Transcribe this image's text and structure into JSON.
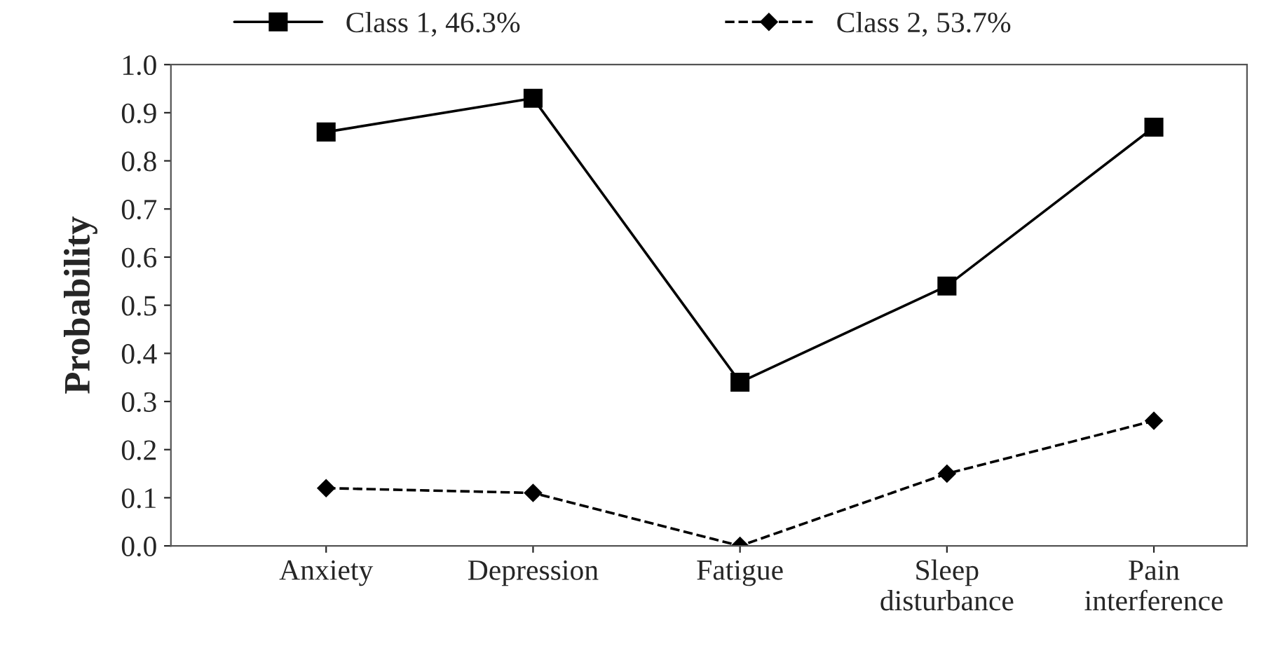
{
  "chart_data": {
    "type": "line",
    "ylabel": "Probability",
    "categories": [
      "Anxiety",
      "Depression",
      "Fatigue",
      "Sleep\ndisturbance",
      "Pain\ninterference"
    ],
    "series": [
      {
        "name": "Class 1, 46.3%",
        "color": "#000000",
        "marker": "square",
        "line_style": "solid",
        "values": [
          0.86,
          0.93,
          0.34,
          0.54,
          0.87
        ]
      },
      {
        "name": "Class 2, 53.7%",
        "color": "#000000",
        "marker": "diamond",
        "line_style": "dashed",
        "values": [
          0.12,
          0.11,
          0.0,
          0.15,
          0.26
        ]
      }
    ],
    "ylim": [
      0.0,
      1.0
    ],
    "yticks": [
      {
        "value": 0.0,
        "label": "0.0"
      },
      {
        "value": 0.1,
        "label": "0.1"
      },
      {
        "value": 0.2,
        "label": "0.2"
      },
      {
        "value": 0.3,
        "label": "0.3"
      },
      {
        "value": 0.4,
        "label": "0.4"
      },
      {
        "value": 0.5,
        "label": "0.5"
      },
      {
        "value": 0.6,
        "label": "0.6"
      },
      {
        "value": 0.7,
        "label": "0.7"
      },
      {
        "value": 0.8,
        "label": "0.8"
      },
      {
        "value": 0.9,
        "label": "0.9"
      },
      {
        "value": 1.0,
        "label": "1.0"
      }
    ],
    "grid": false,
    "legend": "top"
  }
}
